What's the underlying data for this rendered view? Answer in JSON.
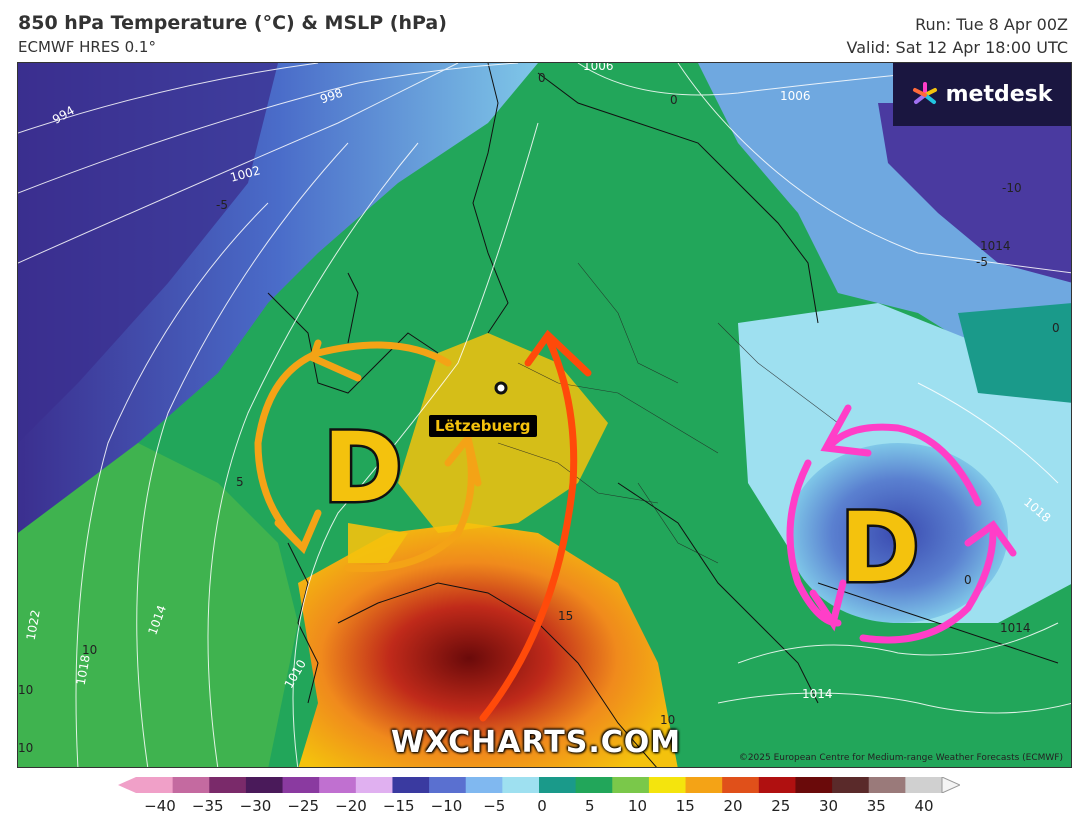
{
  "header": {
    "title": "850 hPa Temperature (°C) & MSLP (hPa)",
    "model": "ECMWF HRES 0.1°",
    "run": "Run: Tue 8 Apr 00Z",
    "valid": "Valid: Sat 12 Apr 18:00 UTC"
  },
  "logo": {
    "text": "metdesk"
  },
  "map": {
    "place_label": "Lëtzebuerg",
    "low_pressure_west": "D",
    "low_pressure_east": "D",
    "watermark": "WXCHARTS.COM",
    "copyright": "©2025 European Centre for Medium-range Weather Forecasts (ECMWF)",
    "isobar_labels": [
      {
        "text": "994",
        "dark": false
      },
      {
        "text": "998",
        "dark": false
      },
      {
        "text": "1002",
        "dark": false
      },
      {
        "text": "1006",
        "dark": false
      },
      {
        "text": "1006",
        "dark": false
      },
      {
        "text": "1014",
        "dark": true
      },
      {
        "text": "1018",
        "dark": true
      },
      {
        "text": "1014",
        "dark": true
      },
      {
        "text": "1014",
        "dark": false
      },
      {
        "text": "1022",
        "dark": false
      },
      {
        "text": "1014",
        "dark": false
      },
      {
        "text": "1018",
        "dark": false
      },
      {
        "text": "1010",
        "dark": false
      }
    ],
    "temp_labels": [
      {
        "text": "-5"
      },
      {
        "text": "0"
      },
      {
        "text": "0"
      },
      {
        "text": "-10"
      },
      {
        "text": "-5"
      },
      {
        "text": "0"
      },
      {
        "text": "5"
      },
      {
        "text": "0"
      },
      {
        "text": "15"
      },
      {
        "text": "10"
      },
      {
        "text": "10"
      },
      {
        "text": "10"
      },
      {
        "text": "10"
      }
    ],
    "colors": {
      "deep_cold": "#3b2f8f",
      "cold": "#4a6cc9",
      "cool": "#7fc7e8",
      "mild": "#22a65a",
      "green": "#3fb34f",
      "yellow": "#f4c20d",
      "orange": "#f08a1c",
      "red": "#d9361e",
      "dark_red": "#7a1010",
      "west_arrow": "#f4a316",
      "east_arrow": "#ff3ec8",
      "flow_arrow": "#ff4a0a"
    }
  },
  "scale": {
    "ticks": [
      "−40",
      "−35",
      "−30",
      "−25",
      "−20",
      "−15",
      "−10",
      "−5",
      "0",
      "5",
      "10",
      "15",
      "20",
      "25",
      "30",
      "35",
      "40"
    ],
    "colors": [
      "#f0a0c8",
      "#c46aa0",
      "#7a2a6a",
      "#4a1a5a",
      "#8a3aa0",
      "#c070d0",
      "#e0b0f0",
      "#3a3aa0",
      "#5a70d0",
      "#80b8f0",
      "#9ee0f0",
      "#1a9a8a",
      "#22a65a",
      "#7ac84a",
      "#f4e40d",
      "#f4a316",
      "#e0501a",
      "#b01010",
      "#6a0a0a",
      "#5a2a2a",
      "#9a7a7a",
      "#d0d0d0"
    ]
  }
}
